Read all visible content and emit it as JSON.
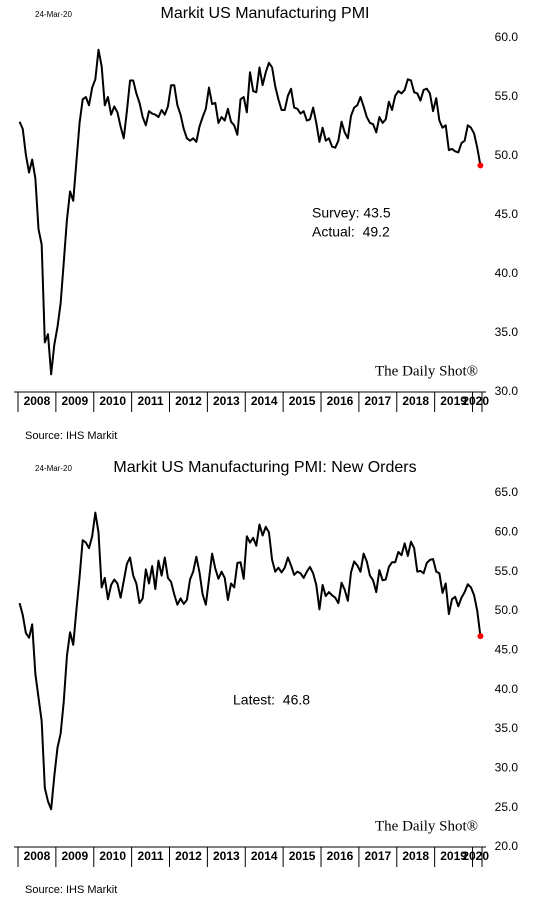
{
  "chart_data": [
    {
      "type": "line",
      "date": "24-Mar-20",
      "title": "Markit US Manufacturing PMI",
      "categories": [
        null,
        null,
        null,
        null,
        null,
        null,
        "2008",
        null,
        null,
        null,
        null,
        null,
        null,
        null,
        null,
        null,
        null,
        null,
        "2009",
        null,
        null,
        null,
        null,
        null,
        null,
        null,
        null,
        null,
        null,
        null,
        "2010",
        null,
        null,
        null,
        null,
        null,
        null,
        null,
        null,
        null,
        null,
        null,
        "2011",
        null,
        null,
        null,
        null,
        null,
        null,
        null,
        null,
        null,
        null,
        null,
        "2012",
        null,
        null,
        null,
        null,
        null,
        null,
        null,
        null,
        null,
        null,
        null,
        "2013",
        null,
        null,
        null,
        null,
        null,
        null,
        null,
        null,
        null,
        null,
        null,
        "2014",
        null,
        null,
        null,
        null,
        null,
        null,
        null,
        null,
        null,
        null,
        null,
        "2015",
        null,
        null,
        null,
        null,
        null,
        null,
        null,
        null,
        null,
        null,
        null,
        "2016",
        null,
        null,
        null,
        null,
        null,
        null,
        null,
        null,
        null,
        null,
        null,
        "2017",
        null,
        null,
        null,
        null,
        null,
        null,
        null,
        null,
        null,
        null,
        null,
        "2018",
        null,
        null,
        null,
        null,
        null,
        null,
        null,
        null,
        null,
        null,
        null,
        "2019",
        null,
        null,
        null,
        null,
        null,
        null,
        "2020",
        null
      ],
      "values": [
        52.9,
        52.3,
        50.1,
        48.6,
        49.7,
        48.1,
        43.8,
        42.5,
        34.2,
        34.9,
        31.5,
        34.0,
        35.5,
        37.5,
        41.0,
        44.6,
        47.0,
        46.2,
        49.5,
        52.8,
        54.8,
        55.0,
        54.3,
        55.8,
        56.5,
        59.0,
        57.6,
        54.3,
        55.0,
        53.5,
        54.2,
        53.7,
        52.5,
        51.5,
        53.8,
        56.4,
        56.4,
        55.3,
        54.5,
        53.3,
        52.6,
        53.8,
        53.6,
        53.5,
        53.3,
        53.9,
        53.5,
        54.2,
        56.0,
        56.0,
        54.3,
        53.5,
        52.3,
        51.5,
        51.3,
        51.5,
        51.2,
        52.5,
        53.3,
        54.0,
        55.8,
        54.4,
        54.5,
        52.8,
        53.3,
        53.0,
        54.0,
        52.9,
        52.6,
        51.8,
        54.8,
        55.0,
        53.7,
        57.1,
        55.5,
        55.4,
        57.5,
        56.0,
        57.1,
        57.9,
        57.5,
        55.9,
        54.8,
        53.9,
        53.9,
        55.1,
        55.7,
        54.1,
        54.0,
        53.6,
        53.8,
        53.0,
        53.1,
        54.1,
        52.8,
        51.2,
        52.4,
        51.3,
        51.5,
        50.8,
        50.7,
        51.3,
        52.9,
        52.0,
        51.5,
        53.4,
        54.1,
        54.3,
        55.0,
        54.2,
        53.3,
        52.8,
        52.7,
        52.0,
        53.3,
        52.8,
        53.1,
        54.6,
        53.9,
        55.1,
        55.5,
        55.3,
        55.6,
        56.5,
        56.4,
        55.4,
        55.3,
        54.7,
        55.6,
        55.7,
        55.3,
        53.8,
        54.9,
        53.0,
        52.4,
        52.6,
        50.5,
        50.6,
        50.4,
        50.3,
        51.1,
        51.3,
        52.6,
        52.4,
        51.9,
        50.7,
        49.2
      ],
      "color": "#000000",
      "marker_color": "#ff0000",
      "ylim": [
        30,
        60
      ],
      "yticks": [
        {
          "value": 30,
          "label": "30.0"
        },
        {
          "value": 35,
          "label": "35.0"
        },
        {
          "value": 40,
          "label": "40.0"
        },
        {
          "value": 45,
          "label": "45.0"
        },
        {
          "value": 50,
          "label": "50.0"
        },
        {
          "value": 55,
          "label": "55.0"
        },
        {
          "value": 60,
          "label": "60.0"
        }
      ],
      "annotations": [
        "Survey: 43.5",
        "Actual:  49.2"
      ],
      "watermark": "The Daily Shot®",
      "source": "Source: IHS Markit"
    },
    {
      "type": "line",
      "date": "24-Mar-20",
      "title": "Markit US Manufacturing PMI: New Orders",
      "categories": [
        null,
        null,
        null,
        null,
        null,
        null,
        "2008",
        null,
        null,
        null,
        null,
        null,
        null,
        null,
        null,
        null,
        null,
        null,
        "2009",
        null,
        null,
        null,
        null,
        null,
        null,
        null,
        null,
        null,
        null,
        null,
        "2010",
        null,
        null,
        null,
        null,
        null,
        null,
        null,
        null,
        null,
        null,
        null,
        "2011",
        null,
        null,
        null,
        null,
        null,
        null,
        null,
        null,
        null,
        null,
        null,
        "2012",
        null,
        null,
        null,
        null,
        null,
        null,
        null,
        null,
        null,
        null,
        null,
        "2013",
        null,
        null,
        null,
        null,
        null,
        null,
        null,
        null,
        null,
        null,
        null,
        "2014",
        null,
        null,
        null,
        null,
        null,
        null,
        null,
        null,
        null,
        null,
        null,
        "2015",
        null,
        null,
        null,
        null,
        null,
        null,
        null,
        null,
        null,
        null,
        null,
        "2016",
        null,
        null,
        null,
        null,
        null,
        null,
        null,
        null,
        null,
        null,
        null,
        "2017",
        null,
        null,
        null,
        null,
        null,
        null,
        null,
        null,
        null,
        null,
        null,
        "2018",
        null,
        null,
        null,
        null,
        null,
        null,
        null,
        null,
        null,
        null,
        null,
        "2019",
        null,
        null,
        null,
        null,
        null,
        null,
        "2020",
        null
      ],
      "values": [
        51.0,
        49.5,
        47.2,
        46.6,
        48.3,
        42.0,
        39.0,
        36.0,
        27.5,
        25.8,
        24.8,
        29.0,
        32.6,
        34.4,
        38.5,
        44.3,
        47.3,
        45.7,
        50.1,
        54.3,
        59.0,
        58.7,
        58.0,
        59.5,
        62.5,
        60.0,
        53.0,
        54.2,
        51.5,
        53.3,
        54.0,
        53.5,
        51.7,
        53.8,
        56.0,
        56.8,
        54.5,
        53.5,
        51.0,
        51.6,
        55.3,
        53.5,
        55.7,
        52.8,
        56.4,
        54.5,
        56.8,
        54.2,
        53.7,
        52.1,
        50.8,
        51.6,
        50.9,
        51.4,
        54.0,
        55.0,
        56.9,
        54.9,
        52.1,
        50.8,
        54.0,
        57.3,
        55.4,
        54.1,
        55.0,
        54.2,
        51.4,
        53.5,
        53.0,
        56.1,
        56.2,
        54.1,
        59.5,
        58.7,
        59.3,
        58.3,
        61.0,
        59.6,
        60.7,
        60.0,
        56.5,
        55.0,
        55.5,
        54.9,
        55.5,
        56.8,
        55.8,
        54.6,
        55.0,
        54.8,
        54.2,
        55.0,
        55.6,
        54.8,
        53.3,
        50.2,
        53.3,
        51.9,
        52.4,
        52.0,
        51.7,
        51.0,
        53.6,
        52.7,
        51.3,
        54.9,
        56.3,
        55.8,
        55.0,
        57.3,
        56.3,
        54.5,
        53.9,
        52.4,
        55.2,
        53.9,
        54.0,
        55.6,
        56.2,
        56.2,
        57.5,
        57.1,
        58.6,
        57.0,
        58.8,
        58.0,
        55.0,
        55.1,
        54.8,
        56.1,
        56.5,
        56.6,
        55.0,
        54.8,
        52.3,
        53.5,
        49.6,
        51.5,
        51.8,
        50.6,
        51.7,
        52.4,
        53.4,
        53.0,
        52.0,
        50.0,
        46.8
      ],
      "color": "#000000",
      "marker_color": "#ff0000",
      "ylim": [
        20,
        65
      ],
      "yticks": [
        {
          "value": 20,
          "label": "20.0"
        },
        {
          "value": 25,
          "label": "25.0"
        },
        {
          "value": 30,
          "label": "30.0"
        },
        {
          "value": 35,
          "label": "35.0"
        },
        {
          "value": 40,
          "label": "40.0"
        },
        {
          "value": 45,
          "label": "45.0"
        },
        {
          "value": 50,
          "label": "50.0"
        },
        {
          "value": 55,
          "label": "55.0"
        },
        {
          "value": 60,
          "label": "60.0"
        },
        {
          "value": 65,
          "label": "65.0"
        }
      ],
      "annotations": [
        "Latest:  46.8"
      ],
      "watermark": "The Daily Shot®",
      "source": "Source: IHS Markit"
    }
  ]
}
